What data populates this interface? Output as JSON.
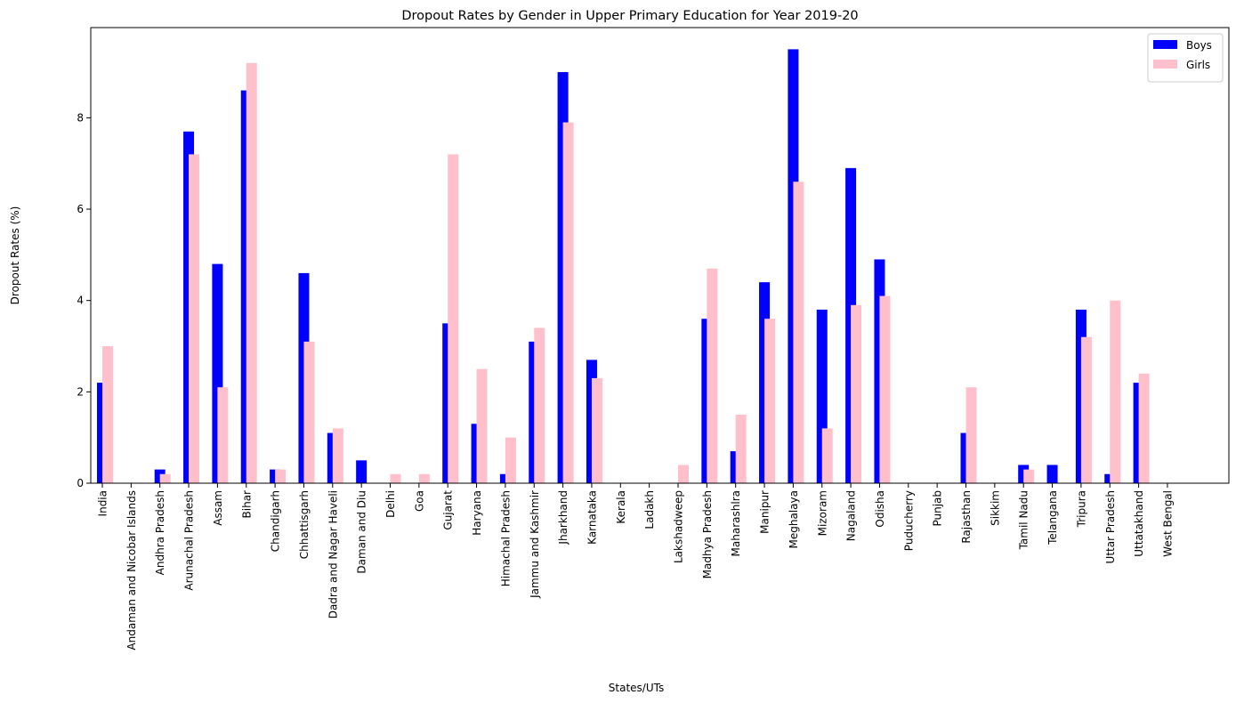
{
  "chart_data": {
    "type": "bar",
    "title": "Dropout Rates by Gender in Upper Primary Education for Year 2019-20",
    "xlabel": "States/UTs",
    "ylabel": "Dropout Rates (%)",
    "ylim": [
      0,
      9.975
    ],
    "yticks": [
      0,
      2,
      4,
      6,
      8
    ],
    "ytick_labels": [
      "0",
      "2",
      "4",
      "6",
      "8"
    ],
    "grid": false,
    "legend_position": "top-right",
    "categories": [
      "India",
      "Andaman and Nicobar Islands",
      "Andhra Pradesh",
      "Arunachal Pradesh",
      "Assam",
      "Bihar",
      "Chandigarh",
      "Chhattisgarh",
      "Dadra and Nagar Haveli",
      "Daman and Diu",
      "Delhi",
      "Goa",
      "Gujarat",
      "Haryana",
      "Himachal Pradesh",
      "Jammu and Kashmir",
      "Jharkhand",
      "Karnataka",
      "Kerala",
      "Ladakh",
      "Lakshadweep",
      "Madhya Pradesh",
      "Maharashlra",
      "Manipur",
      "Meghalaya",
      "Mizoram",
      "Nagaland",
      "Odisha",
      "Puducherry",
      "Punjab",
      "Rajasthan",
      "Sikkim",
      "Tamil Nadu",
      "Telangana",
      "Tripura",
      "Uttar Pradesh",
      "Uttatakhand",
      "West Bengal"
    ],
    "series": [
      {
        "name": "Boys",
        "color": "#0000ff",
        "values": [
          2.2,
          0,
          0.3,
          7.7,
          4.8,
          8.6,
          0.3,
          4.6,
          1.1,
          0.5,
          0,
          0,
          3.5,
          1.3,
          0.2,
          3.1,
          9.0,
          2.7,
          0,
          0,
          0,
          3.6,
          0.7,
          4.4,
          9.5,
          3.8,
          6.9,
          4.9,
          0,
          0,
          1.1,
          0,
          0.4,
          0.4,
          3.8,
          0.2,
          2.2,
          0
        ]
      },
      {
        "name": "Girls",
        "color": "#ffc0cb",
        "values": [
          3.0,
          0,
          0.2,
          7.2,
          2.1,
          9.2,
          0.3,
          3.1,
          1.2,
          0,
          0.2,
          0.2,
          7.2,
          2.5,
          1.0,
          3.4,
          7.9,
          2.3,
          0,
          0,
          0.4,
          4.7,
          1.5,
          3.6,
          6.6,
          1.2,
          3.9,
          4.1,
          0,
          0,
          2.1,
          0,
          0.3,
          0,
          3.2,
          4.0,
          2.4,
          0
        ]
      }
    ]
  }
}
